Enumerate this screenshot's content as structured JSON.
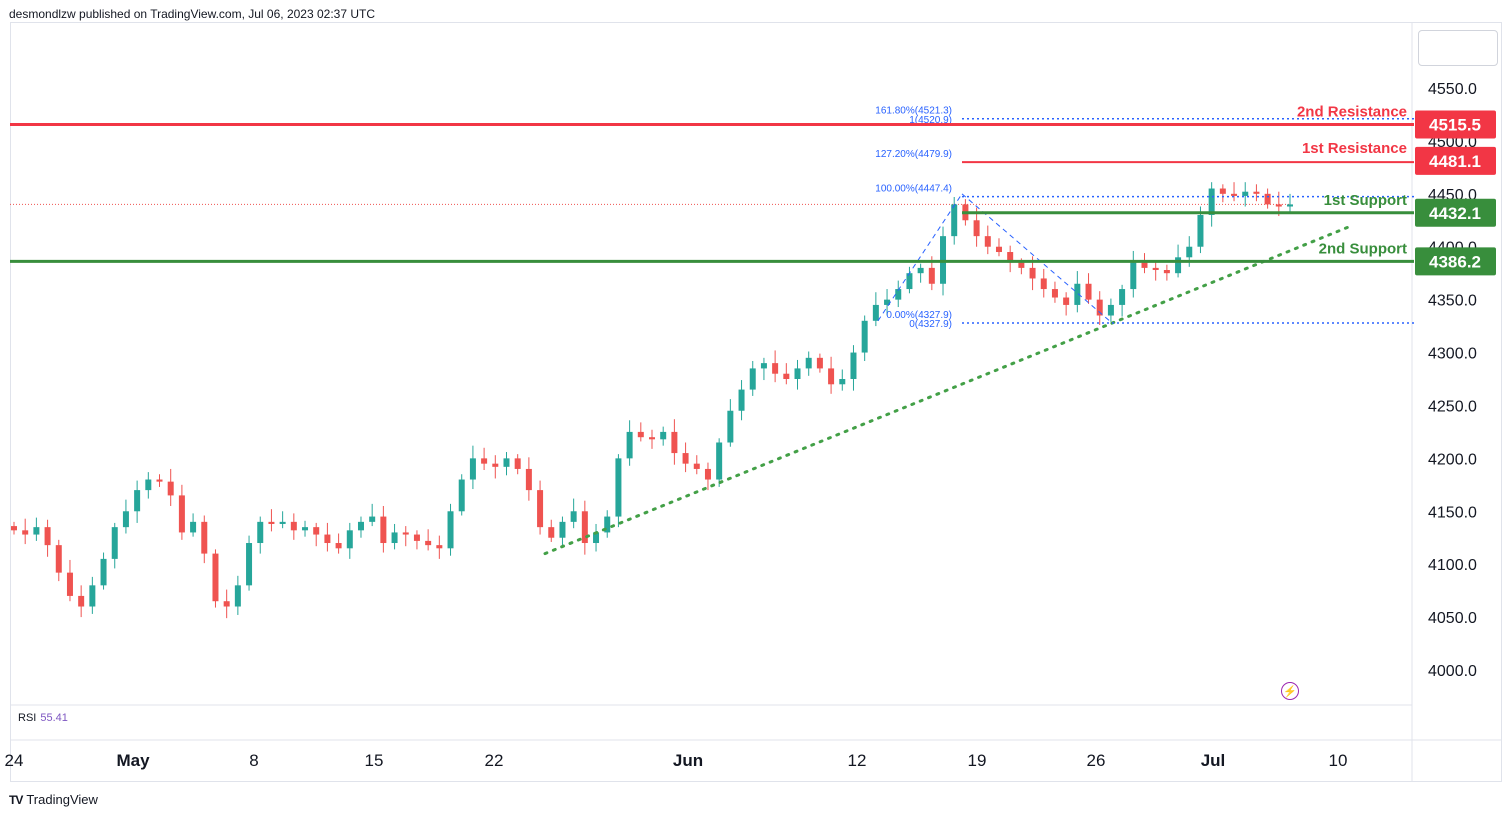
{
  "header": {
    "text": "desmondlzw published on TradingView.com, Jul 06, 2023 02:37 UTC"
  },
  "footer": {
    "logo": "TV",
    "brand": "TradingView"
  },
  "rsi": {
    "label": "RSI",
    "value": "55.41"
  },
  "colors": {
    "up": "#26a69a",
    "down": "#ef5350",
    "resistance": "#f23645",
    "support": "#388e3c",
    "fib": "#2962ff",
    "trend": "#43a047"
  },
  "chart_data": {
    "type": "candlestick",
    "title": "",
    "ylim": [
      3960,
      4580
    ],
    "y_ticks": [
      "4550.0",
      "4500.0",
      "4450.0",
      "4400.0",
      "4350.0",
      "4300.0",
      "4250.0",
      "4200.0",
      "4150.0",
      "4100.0",
      "4050.0",
      "4000.0"
    ],
    "y_tick_values": [
      4550,
      4500,
      4450,
      4400,
      4350,
      4300,
      4250,
      4200,
      4150,
      4100,
      4050,
      4000
    ],
    "x_ticks": [
      "24",
      "May",
      "8",
      "15",
      "22",
      "Jun",
      "12",
      "19",
      "26",
      "Jul",
      "10"
    ],
    "levels": [
      {
        "label": "2nd Resistance",
        "value": 4515.5,
        "tag": "4515.5",
        "kind": "resistance"
      },
      {
        "label": "1st Resistance",
        "value": 4481.1,
        "tag": "4481.1",
        "kind": "resistance"
      },
      {
        "label": "1st Support",
        "value": 4432.1,
        "tag": "4432.1",
        "kind": "support"
      },
      {
        "label": "2nd Support",
        "value": 4386.2,
        "tag": "4386.2",
        "kind": "support"
      }
    ],
    "fib_labels": [
      {
        "text": "161.80%(4521.3)",
        "value": 4521.3
      },
      {
        "text": "1(4520.9)",
        "value": 4520.9
      },
      {
        "text": "127.20%(4479.9)",
        "value": 4479.9
      },
      {
        "text": "100.00%(4447.4)",
        "value": 4447.4
      },
      {
        "text": "0.00%(4327.9)",
        "value": 4327.9
      },
      {
        "text": "0(4327.9)",
        "value": 4327.9
      }
    ],
    "close_series": [
      4132,
      4128,
      4135,
      4118,
      4092,
      4070,
      4060,
      4080,
      4105,
      4135,
      4150,
      4170,
      4180,
      4178,
      4165,
      4130,
      4140,
      4110,
      4065,
      4060,
      4080,
      4120,
      4140,
      4138,
      4140,
      4132,
      4135,
      4128,
      4120,
      4115,
      4132,
      4140,
      4145,
      4120,
      4130,
      4128,
      4122,
      4118,
      4115,
      4150,
      4180,
      4200,
      4195,
      4192,
      4200,
      4190,
      4170,
      4135,
      4125,
      4140,
      4150,
      4120,
      4130,
      4145,
      4200,
      4225,
      4220,
      4218,
      4225,
      4205,
      4195,
      4190,
      4180,
      4215,
      4245,
      4265,
      4285,
      4290,
      4280,
      4275,
      4285,
      4295,
      4285,
      4270,
      4275,
      4300,
      4330,
      4345,
      4350,
      4360,
      4375,
      4380,
      4365,
      4410,
      4440,
      4425,
      4410,
      4400,
      4395,
      4385,
      4380,
      4370,
      4360,
      4352,
      4345,
      4365,
      4350,
      4335,
      4345,
      4360,
      4385,
      4380,
      4378,
      4375,
      4390,
      4400,
      4430,
      4455,
      4450,
      4448,
      4452,
      4450,
      4440,
      4438,
      4440
    ]
  }
}
